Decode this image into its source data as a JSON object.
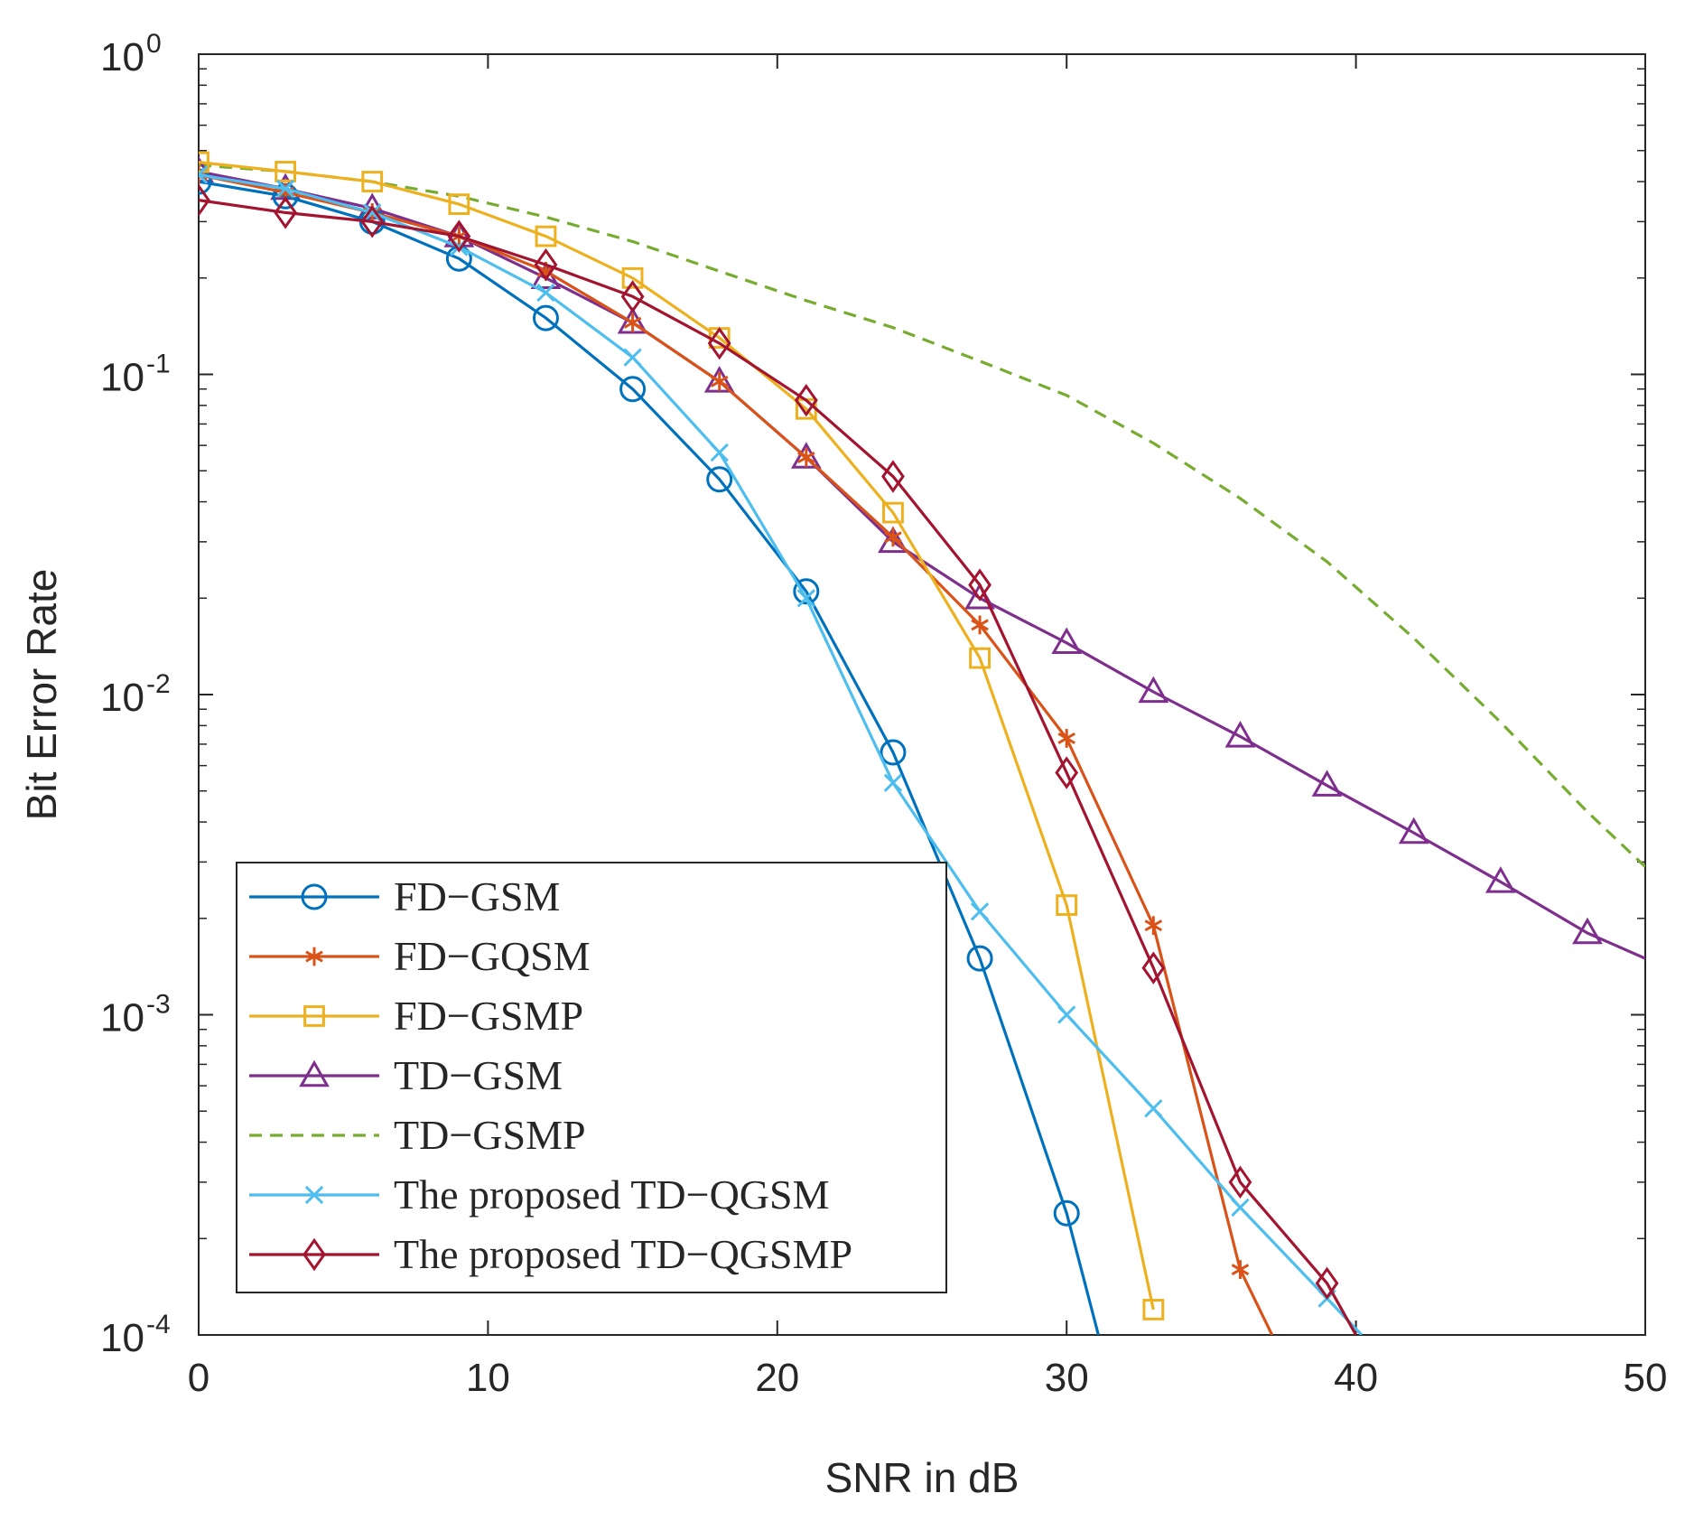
{
  "chart_data": {
    "type": "line",
    "title": "",
    "xlabel": "SNR in dB",
    "ylabel": "Bit Error Rate",
    "x_scale": "linear",
    "y_scale": "log",
    "xlim": [
      0,
      50
    ],
    "ylim": [
      0.0001,
      1
    ],
    "x_ticks": [
      0,
      10,
      20,
      30,
      40,
      50
    ],
    "y_ticks": [
      {
        "value": 1,
        "base": "10",
        "exp": "0"
      },
      {
        "value": 0.1,
        "base": "10",
        "exp": "-1"
      },
      {
        "value": 0.01,
        "base": "10",
        "exp": "-2"
      },
      {
        "value": 0.001,
        "base": "10",
        "exp": "-3"
      },
      {
        "value": 0.0001,
        "base": "10",
        "exp": "-4"
      }
    ],
    "grid": false,
    "legend_position": "bottom-left",
    "series": [
      {
        "name": "FD−GSM",
        "color": "#0072BD",
        "marker": "circle",
        "dash": "solid",
        "x": [
          0,
          3,
          6,
          9,
          12,
          15,
          18,
          21,
          24,
          27,
          30,
          31.1
        ],
        "y": [
          0.4,
          0.36,
          0.3,
          0.23,
          0.15,
          0.09,
          0.047,
          0.021,
          0.0066,
          0.0015,
          0.00024,
          0.0001
        ],
        "markers": [
          true,
          true,
          true,
          true,
          true,
          true,
          true,
          true,
          true,
          true,
          true,
          false
        ]
      },
      {
        "name": "FD−GQSM",
        "color": "#D95319",
        "marker": "asterisk",
        "dash": "solid",
        "x": [
          0,
          3,
          6,
          9,
          12,
          15,
          18,
          21,
          24,
          27,
          30,
          33,
          36,
          37.1
        ],
        "y": [
          0.42,
          0.37,
          0.32,
          0.27,
          0.21,
          0.145,
          0.095,
          0.055,
          0.031,
          0.0165,
          0.0073,
          0.0019,
          0.00016,
          0.0001
        ],
        "markers": [
          true,
          true,
          true,
          true,
          true,
          true,
          true,
          true,
          true,
          true,
          true,
          true,
          true,
          false
        ]
      },
      {
        "name": "FD−GSMP",
        "color": "#EDB120",
        "marker": "square",
        "dash": "solid",
        "x": [
          0,
          3,
          6,
          9,
          12,
          15,
          18,
          21,
          24,
          27,
          30,
          33
        ],
        "y": [
          0.46,
          0.43,
          0.4,
          0.34,
          0.27,
          0.2,
          0.13,
          0.078,
          0.037,
          0.013,
          0.0022,
          0.00012
        ],
        "markers": [
          true,
          true,
          true,
          true,
          true,
          true,
          true,
          true,
          true,
          true,
          true,
          true
        ]
      },
      {
        "name": "TD−GSM",
        "color": "#7E2F8E",
        "marker": "triangle",
        "dash": "solid",
        "x": [
          0,
          3,
          6,
          9,
          12,
          15,
          18,
          21,
          24,
          27,
          30,
          33,
          36,
          39,
          42,
          45,
          48,
          50
        ],
        "y": [
          0.43,
          0.38,
          0.33,
          0.27,
          0.2,
          0.145,
          0.095,
          0.055,
          0.03,
          0.02,
          0.0145,
          0.0102,
          0.0074,
          0.0052,
          0.0037,
          0.0026,
          0.0018,
          0.0015
        ],
        "markers": [
          true,
          true,
          true,
          true,
          true,
          true,
          true,
          true,
          true,
          true,
          true,
          true,
          true,
          true,
          true,
          true,
          true,
          false
        ]
      },
      {
        "name": "TD−GSMP",
        "color": "#77AC30",
        "marker": "none",
        "dash": "dashed",
        "x": [
          0,
          3,
          6,
          9,
          12,
          15,
          18,
          21,
          24,
          27,
          30,
          33,
          36,
          39,
          42,
          45,
          48,
          50
        ],
        "y": [
          0.45,
          0.43,
          0.4,
          0.36,
          0.31,
          0.26,
          0.21,
          0.17,
          0.14,
          0.11,
          0.086,
          0.061,
          0.041,
          0.026,
          0.015,
          0.0082,
          0.0043,
          0.0029
        ],
        "markers": [
          false,
          false,
          false,
          false,
          false,
          false,
          false,
          false,
          false,
          false,
          false,
          false,
          false,
          false,
          false,
          false,
          false,
          false
        ]
      },
      {
        "name": "The proposed TD−QGSM",
        "color": "#4DBEEE",
        "marker": "x",
        "dash": "solid",
        "x": [
          0,
          3,
          6,
          9,
          12,
          15,
          18,
          21,
          24,
          27,
          30,
          33,
          36,
          39,
          40.2
        ],
        "y": [
          0.42,
          0.38,
          0.32,
          0.25,
          0.18,
          0.113,
          0.057,
          0.02,
          0.0053,
          0.0021,
          0.001,
          0.00051,
          0.00025,
          0.00013,
          0.0001
        ],
        "markers": [
          true,
          true,
          true,
          true,
          true,
          true,
          true,
          true,
          true,
          true,
          true,
          true,
          true,
          true,
          false
        ]
      },
      {
        "name": "The proposed TD−QGSMP",
        "color": "#A2142F",
        "marker": "diamond",
        "dash": "solid",
        "x": [
          0,
          3,
          6,
          9,
          12,
          15,
          18,
          21,
          24,
          27,
          30,
          33,
          36,
          39,
          40.0
        ],
        "y": [
          0.35,
          0.32,
          0.3,
          0.27,
          0.22,
          0.175,
          0.125,
          0.083,
          0.048,
          0.022,
          0.0057,
          0.0014,
          0.0003,
          0.000145,
          0.0001
        ],
        "markers": [
          true,
          true,
          true,
          true,
          true,
          true,
          true,
          true,
          true,
          true,
          true,
          true,
          true,
          true,
          false
        ]
      }
    ]
  }
}
